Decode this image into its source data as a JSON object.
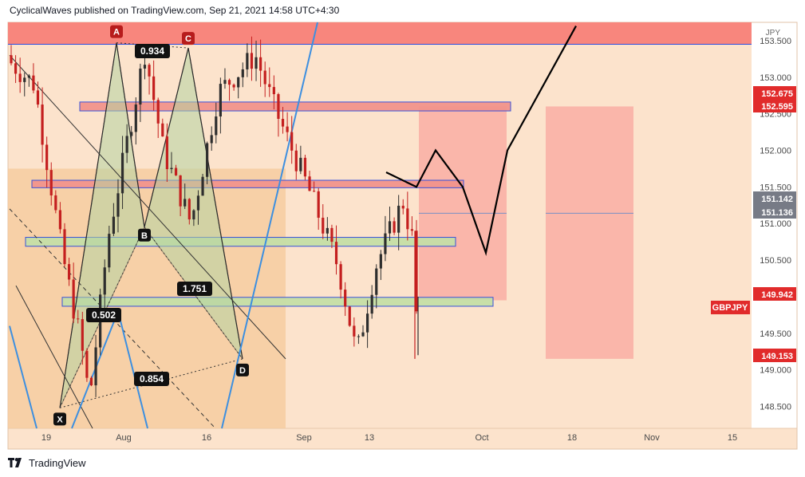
{
  "header": {
    "publisher_line": "CyclicalWaves published on TradingView.com, Sep 21, 2021 14:58 UTC+4:30"
  },
  "footer": {
    "brand": "TradingView"
  },
  "colors": {
    "background": "#fce3cc",
    "price_axis_bg": "#ffffff",
    "red_zone": "#f77b74",
    "pink_box": "#f9aea3",
    "rect_red": "#f2948c",
    "rect_green": "#c6dfa7",
    "rect_border": "#2e4bdc",
    "pattern_fill": "#b5d4a2",
    "left_shade": "#f6c99b",
    "candle_up": "#2e2e2e",
    "candle_down": "#c41f1f",
    "blue_line": "#3d8fe0",
    "label_red": "#e12b2b",
    "label_grey": "#777b86",
    "label_dark": "#111111"
  },
  "chart_data": {
    "type": "candlestick",
    "symbol": "GBPJPY",
    "currency_label": "JPY",
    "x_tick_labels": [
      "19",
      "Aug",
      "16",
      "Sep",
      "13",
      "Oct",
      "18",
      "Nov",
      "15"
    ],
    "y_tick_labels": [
      "148.500",
      "149.000",
      "149.500",
      "150.000",
      "150.500",
      "151.000",
      "151.500",
      "152.000",
      "152.500",
      "153.000",
      "153.500"
    ],
    "y_range": [
      148.2,
      153.75
    ],
    "price_labels": [
      {
        "text": "152.675",
        "style": "red"
      },
      {
        "text": "152.595",
        "style": "red"
      },
      {
        "text": "151.142",
        "style": "grey"
      },
      {
        "text": "151.136",
        "style": "grey"
      },
      {
        "text": "149.942",
        "style": "red"
      },
      {
        "text": "149.153",
        "style": "red"
      }
    ],
    "symbol_tag": "GBPJPY",
    "pattern_points": [
      {
        "label": "X",
        "price": 148.48,
        "style": "black"
      },
      {
        "label": "A",
        "price": 153.47,
        "style": "red"
      },
      {
        "label": "B",
        "price": 150.95,
        "style": "black"
      },
      {
        "label": "C",
        "price": 153.4,
        "style": "red"
      },
      {
        "label": "D",
        "price": 149.15,
        "style": "black"
      }
    ],
    "ratio_labels": [
      "0.934",
      "1.751",
      "0.502",
      "0.854"
    ],
    "horizontal_zones": [
      {
        "kind": "red",
        "low": 152.55,
        "high": 152.65
      },
      {
        "kind": "red",
        "low": 151.5,
        "high": 151.58
      },
      {
        "kind": "green",
        "low": 150.7,
        "high": 150.8
      },
      {
        "kind": "green",
        "low": 149.88,
        "high": 149.98
      }
    ],
    "projection_path": [
      151.7,
      151.5,
      152.0,
      151.5,
      150.6,
      152.0,
      153.7
    ],
    "candles": {
      "count": 92,
      "start_price": 153.3,
      "end_price": 149.8
    }
  }
}
